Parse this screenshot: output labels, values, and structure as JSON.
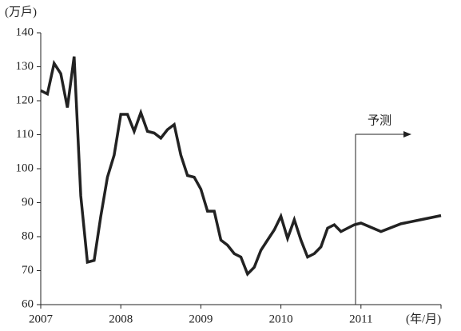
{
  "chart_data": {
    "type": "line",
    "y_axis_label": "(万戶)",
    "x_axis_label": "(年/月)",
    "annotation": "予测",
    "x": [
      2007.0,
      2007.083,
      2007.167,
      2007.25,
      2007.333,
      2007.417,
      2007.5,
      2007.583,
      2007.667,
      2007.75,
      2007.833,
      2007.917,
      2008.0,
      2008.083,
      2008.167,
      2008.25,
      2008.333,
      2008.417,
      2008.5,
      2008.583,
      2008.667,
      2008.75,
      2008.833,
      2008.917,
      2009.0,
      2009.083,
      2009.167,
      2009.25,
      2009.333,
      2009.417,
      2009.5,
      2009.583,
      2009.667,
      2009.75,
      2009.833,
      2009.917,
      2010.0,
      2010.083,
      2010.167,
      2010.25,
      2010.333,
      2010.417,
      2010.5,
      2010.583,
      2010.667,
      2010.75,
      2010.833,
      2010.917,
      2011.0,
      2011.25,
      2011.5,
      2011.75,
      2012.0
    ],
    "series": [
      {
        "color": "#222222",
        "values": [
          123,
          122,
          131,
          128,
          118,
          133,
          92,
          72.5,
          73,
          86,
          97.5,
          104,
          116,
          116,
          111,
          116.5,
          111,
          110.5,
          109,
          111.5,
          113,
          104,
          98,
          97.5,
          94,
          87.5,
          87.5,
          79,
          77.5,
          75,
          74,
          69,
          71,
          76,
          79,
          82,
          86,
          79.5,
          85,
          79,
          74,
          75,
          77,
          82.5,
          83.5,
          81.5,
          82.5,
          83.5,
          84,
          81.5,
          83.8,
          85,
          86.2
        ]
      }
    ],
    "xlim": [
      2007,
      2012
    ],
    "xticks": [
      2007,
      2008,
      2009,
      2010,
      2011
    ],
    "ylim": [
      60,
      140
    ],
    "yticks": [
      60,
      70,
      80,
      90,
      100,
      110,
      120,
      130,
      140
    ]
  }
}
